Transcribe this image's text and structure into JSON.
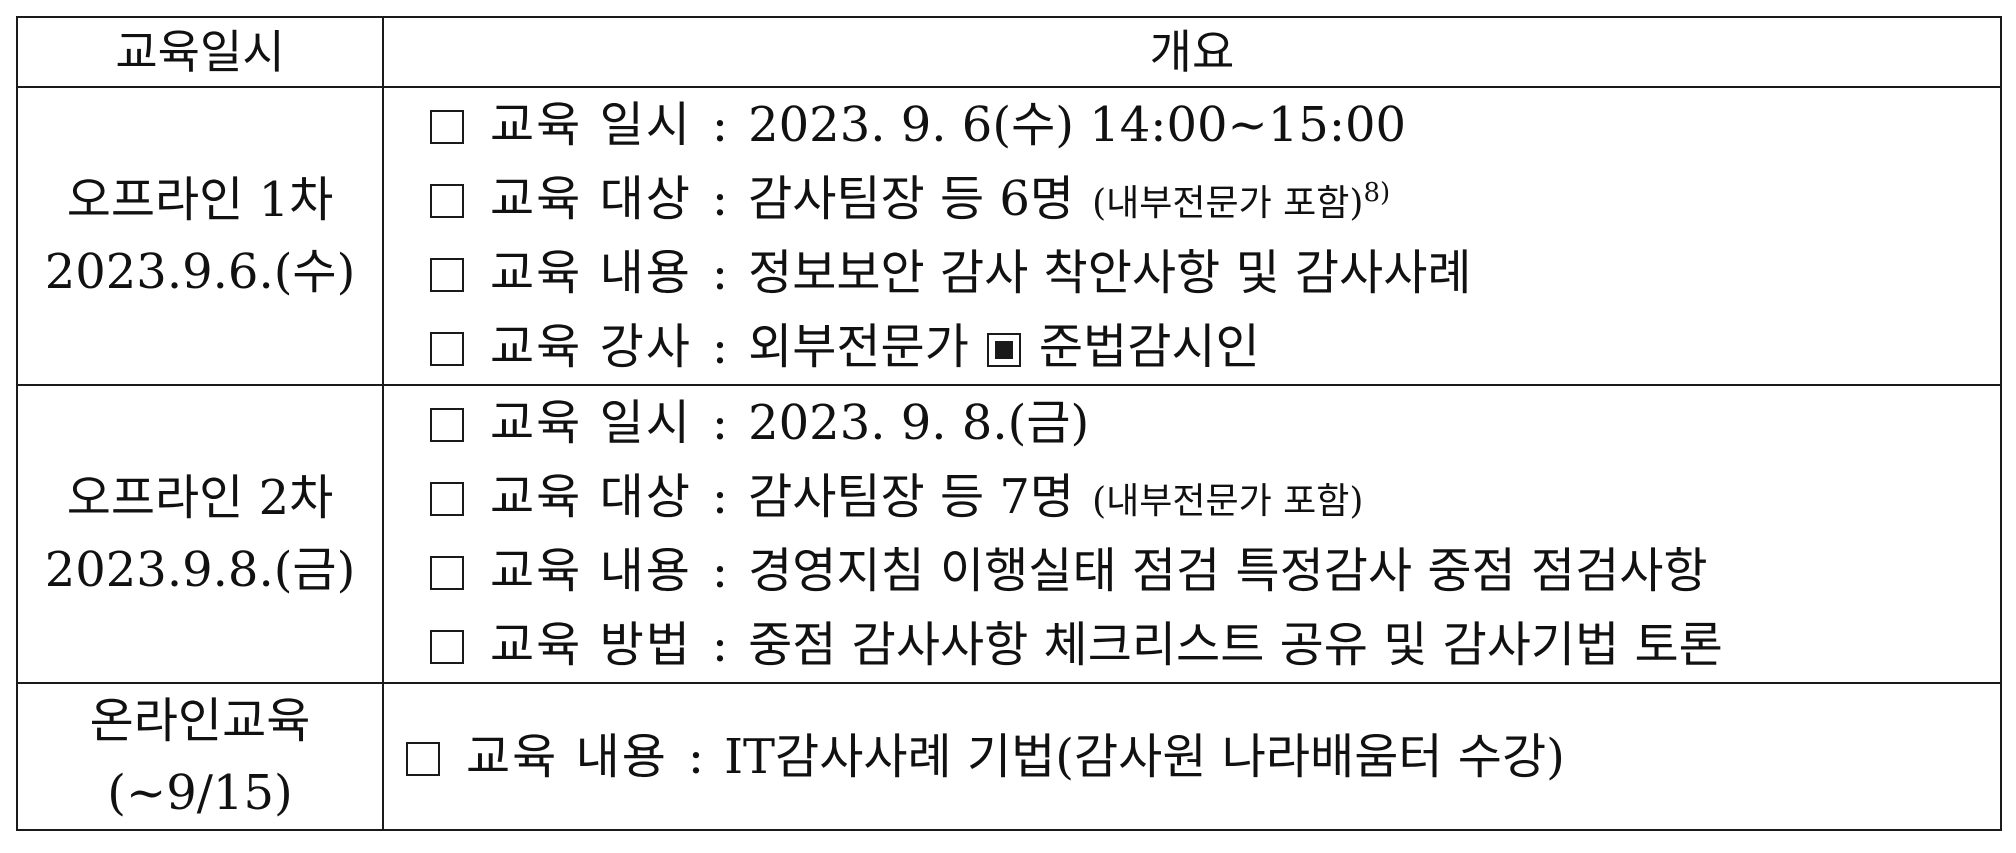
{
  "table": {
    "headers": {
      "date": "교육일시",
      "summary": "개요"
    },
    "sessions": [
      {
        "date_line1": "오프라인 1차",
        "date_line2": "2023.9.6.(수)",
        "items": [
          {
            "label": "교육 일시",
            "value": "2023. 9. 6(수) 14:00~15:00"
          },
          {
            "label": "교육 대상",
            "value": "감사팀장 등 6명",
            "note": "(내부전문가 포함)",
            "sup": "8)"
          },
          {
            "label": "교육 내용",
            "value": "정보보안 감사 착안사항 및 감사사례"
          },
          {
            "label": "교육 강사",
            "value_before": "외부전문가",
            "value_after": "준법감시인"
          }
        ]
      },
      {
        "date_line1": "오프라인 2차",
        "date_line2": "2023.9.8.(금)",
        "items": [
          {
            "label": "교육 일시",
            "value": "2023. 9. 8.(금)"
          },
          {
            "label": "교육 대상",
            "value": "감사팀장 등 7명",
            "note": "(내부전문가 포함)"
          },
          {
            "label": "교육 내용",
            "value": "경영지침 이행실태 점검 특정감사 중점 점검사항"
          },
          {
            "label": "교육 방법",
            "value": "중점 감사사항 체크리스트 공유 및 감사기법 토론"
          }
        ]
      }
    ],
    "online": {
      "date_line1": "온라인교육",
      "date_line2": "(~9/15)",
      "item": {
        "label": "교육 내용",
        "value": "IT감사사례 기법(감사원 나라배움터 수강)"
      }
    },
    "colon": ":"
  }
}
